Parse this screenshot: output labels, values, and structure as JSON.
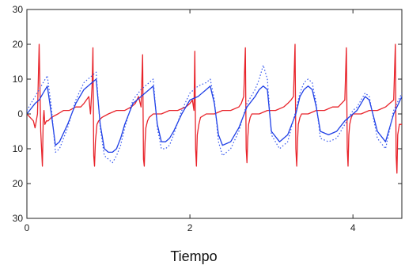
{
  "chart_data": {
    "type": "line",
    "title": "",
    "xlabel": "Tiempo",
    "ylabel": "",
    "xlim": [
      0,
      4.6
    ],
    "ylim": [
      -30,
      30
    ],
    "x_ticks": [
      0,
      2,
      4
    ],
    "x_tick_labels": [
      "0",
      "2",
      "4"
    ],
    "y_ticks": [
      30,
      20,
      10,
      0,
      -10,
      -20,
      -30
    ],
    "y_tick_labels": [
      "30",
      "20",
      "10",
      "0",
      "10",
      "20",
      "30"
    ],
    "grid": false,
    "legend": "none",
    "series": [
      {
        "style": "solid",
        "color": "#e8232a",
        "x": [
          0.0,
          0.04,
          0.08,
          0.1,
          0.13,
          0.15,
          0.17,
          0.19,
          0.2,
          0.21,
          0.22,
          0.24,
          0.26,
          0.3,
          0.38,
          0.45,
          0.52,
          0.6,
          0.66,
          0.7,
          0.73,
          0.76,
          0.78,
          0.8,
          0.81,
          0.82,
          0.83,
          0.84,
          0.86,
          0.88,
          0.92,
          1.0,
          1.1,
          1.2,
          1.28,
          1.33,
          1.37,
          1.4,
          1.42,
          1.43,
          1.44,
          1.45,
          1.46,
          1.48,
          1.5,
          1.55,
          1.65,
          1.75,
          1.85,
          1.95,
          2.0,
          2.03,
          2.05,
          2.06,
          2.07,
          2.08,
          2.09,
          2.11,
          2.13,
          2.2,
          2.3,
          2.4,
          2.5,
          2.6,
          2.63,
          2.66,
          2.68,
          2.69,
          2.7,
          2.71,
          2.72,
          2.74,
          2.76,
          2.85,
          2.95,
          3.05,
          3.15,
          3.2,
          3.24,
          3.27,
          3.29,
          3.3,
          3.31,
          3.32,
          3.33,
          3.35,
          3.37,
          3.45,
          3.55,
          3.65,
          3.75,
          3.82,
          3.86,
          3.9,
          3.92,
          3.93,
          3.94,
          3.95,
          3.96,
          3.98,
          4.0,
          4.1,
          4.2,
          4.3,
          4.4,
          4.45,
          4.5,
          4.52,
          4.53,
          4.54,
          4.55,
          4.57,
          4.6
        ],
        "y": [
          0,
          -1,
          -2,
          -4,
          0,
          20,
          -5,
          -15,
          -2,
          1,
          -3,
          -2,
          -2,
          -1,
          0,
          1,
          1,
          2,
          2,
          3,
          4,
          5,
          0,
          8,
          19,
          -12,
          -15,
          -8,
          -3,
          -2,
          -1,
          0,
          1,
          1,
          2,
          3,
          5,
          2,
          17,
          -13,
          -15,
          -8,
          -4,
          -2,
          -1,
          0,
          0,
          1,
          1,
          2,
          3,
          4,
          1,
          18,
          -10,
          -15,
          -6,
          -3,
          -1,
          0,
          0,
          1,
          1,
          2,
          3,
          5,
          19,
          -10,
          -14,
          -7,
          -3,
          -1,
          0,
          0,
          1,
          1,
          2,
          3,
          4,
          5,
          20,
          -10,
          -15,
          -8,
          -3,
          -1,
          0,
          0,
          1,
          1,
          2,
          2,
          3,
          4,
          19,
          -10,
          -15,
          -6,
          -3,
          -1,
          0,
          0,
          1,
          1,
          2,
          3,
          4,
          20,
          -12,
          -17,
          -6,
          -3,
          -3
        ]
      },
      {
        "style": "solid",
        "color": "#1f3fe6",
        "x": [
          0.0,
          0.1,
          0.15,
          0.2,
          0.25,
          0.3,
          0.35,
          0.4,
          0.5,
          0.6,
          0.7,
          0.8,
          0.85,
          0.9,
          0.95,
          1.0,
          1.05,
          1.1,
          1.15,
          1.2,
          1.3,
          1.4,
          1.5,
          1.55,
          1.6,
          1.65,
          1.7,
          1.75,
          1.8,
          1.9,
          2.0,
          2.1,
          2.2,
          2.25,
          2.3,
          2.35,
          2.4,
          2.5,
          2.6,
          2.7,
          2.8,
          2.85,
          2.9,
          2.95,
          3.0,
          3.1,
          3.2,
          3.3,
          3.35,
          3.4,
          3.45,
          3.5,
          3.55,
          3.6,
          3.7,
          3.8,
          3.9,
          4.0,
          4.05,
          4.1,
          4.15,
          4.2,
          4.3,
          4.4,
          4.5,
          4.6
        ],
        "y": [
          0,
          3,
          4,
          6,
          8,
          0,
          -9,
          -8,
          -3,
          3,
          7,
          9,
          10,
          -3,
          -10,
          -11,
          -11,
          -10,
          -7,
          -3,
          3,
          5,
          7,
          8,
          -3,
          -8,
          -8,
          -7,
          -5,
          0,
          4,
          5,
          7,
          8,
          3,
          -6,
          -9,
          -8,
          -4,
          2,
          5,
          7,
          8,
          7,
          -5,
          -8,
          -6,
          0,
          5,
          7,
          8,
          7,
          2,
          -5,
          -6,
          -5,
          -2,
          0,
          1,
          3,
          5,
          4,
          -5,
          -8,
          0,
          5
        ]
      },
      {
        "style": "dotted",
        "color": "#3355ee",
        "x": [
          0.0,
          0.1,
          0.15,
          0.2,
          0.25,
          0.3,
          0.35,
          0.4,
          0.5,
          0.6,
          0.7,
          0.8,
          0.85,
          0.9,
          0.95,
          1.0,
          1.05,
          1.1,
          1.15,
          1.2,
          1.3,
          1.4,
          1.5,
          1.55,
          1.6,
          1.65,
          1.7,
          1.75,
          1.8,
          1.9,
          2.0,
          2.1,
          2.2,
          2.25,
          2.3,
          2.35,
          2.4,
          2.5,
          2.6,
          2.7,
          2.8,
          2.85,
          2.9,
          2.95,
          3.0,
          3.1,
          3.2,
          3.3,
          3.35,
          3.4,
          3.45,
          3.5,
          3.55,
          3.6,
          3.7,
          3.8,
          3.9,
          4.0,
          4.05,
          4.1,
          4.15,
          4.2,
          4.3,
          4.4,
          4.5,
          4.6
        ],
        "y": [
          1,
          5,
          7,
          9,
          11,
          2,
          -11,
          -10,
          -4,
          4,
          9,
          11,
          12,
          -4,
          -12,
          -13,
          -14,
          -12,
          -9,
          -4,
          4,
          7,
          9,
          10,
          -4,
          -10,
          -10,
          -9,
          -6,
          1,
          6,
          8,
          9,
          10,
          4,
          -8,
          -12,
          -10,
          -5,
          3,
          7,
          10,
          14,
          10,
          -6,
          -10,
          -8,
          1,
          6,
          9,
          10,
          9,
          3,
          -7,
          -8,
          -7,
          -3,
          1,
          2,
          4,
          6,
          5,
          -7,
          -10,
          1,
          6
        ]
      }
    ]
  }
}
